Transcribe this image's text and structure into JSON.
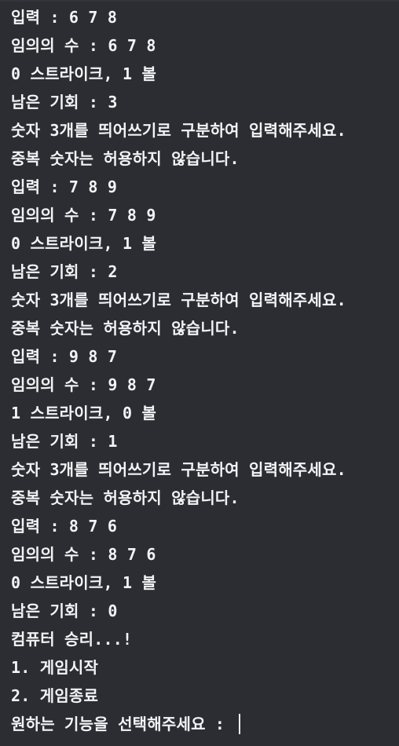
{
  "terminal": {
    "lines": [
      "입력 : 6 7 8",
      "임의의 수 : 6 7 8",
      "0 스트라이크, 1 볼",
      "남은 기회 : 3",
      "숫자 3개를 띄어쓰기로 구분하여 입력해주세요.",
      "중복 숫자는 허용하지 않습니다.",
      "입력 : 7 8 9",
      "임의의 수 : 7 8 9",
      "0 스트라이크, 1 볼",
      "남은 기회 : 2",
      "숫자 3개를 띄어쓰기로 구분하여 입력해주세요.",
      "중복 숫자는 허용하지 않습니다.",
      "입력 : 9 8 7",
      "임의의 수 : 9 8 7",
      "1 스트라이크, 0 볼",
      "남은 기회 : 1",
      "숫자 3개를 띄어쓰기로 구분하여 입력해주세요.",
      "중복 숫자는 허용하지 않습니다.",
      "입력 : 8 7 6",
      "임의의 수 : 8 7 6",
      "0 스트라이크, 1 볼",
      "남은 기회 : 0",
      "컴퓨터 승리...!",
      "1. 게임시작",
      "2. 게임종료"
    ],
    "prompt": "원하는 기능을 선택해주세요 : "
  },
  "colors": {
    "background": "#2b2d32",
    "text": "#f2f3f5"
  }
}
